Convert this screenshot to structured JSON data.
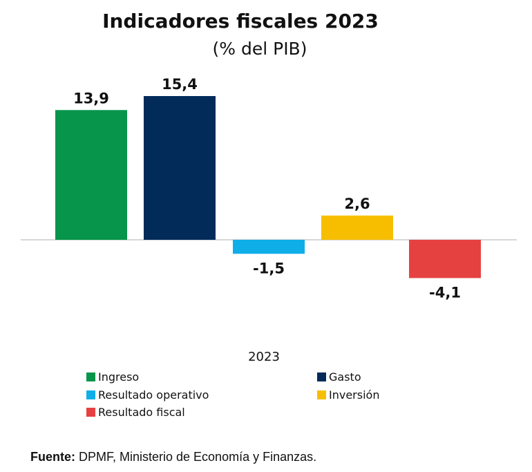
{
  "chart_data": {
    "type": "bar",
    "title": "Indicadores fiscales 2023",
    "subtitle": "(% del PIB)",
    "xlabel": "2023",
    "ylabel": "",
    "ylim": [
      -4.1,
      15.4
    ],
    "grid": false,
    "legend_position": "bottom",
    "series": [
      {
        "name": "Ingreso",
        "value": 13.9,
        "label": "13,9",
        "color": "#06954B"
      },
      {
        "name": "Gasto",
        "value": 15.4,
        "label": "15,4",
        "color": "#032B5A"
      },
      {
        "name": "Resultado operativo",
        "value": -1.5,
        "label": "-1,5",
        "color": "#0FAEE8"
      },
      {
        "name": "Inversión",
        "value": 2.6,
        "label": "2,6",
        "color": "#F7BE00"
      },
      {
        "name": "Resultado fiscal",
        "value": -4.1,
        "label": "-4,1",
        "color": "#E64141"
      }
    ]
  },
  "source": {
    "label": "Fuente:",
    "text": " DPMF, Ministerio de Economía y Finanzas."
  }
}
